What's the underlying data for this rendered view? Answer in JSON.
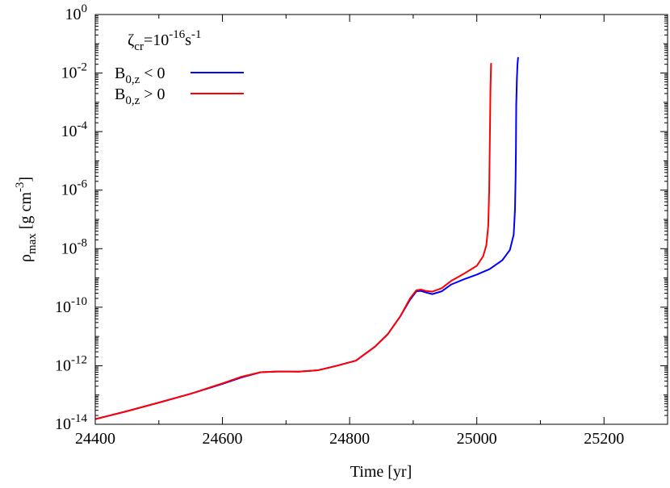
{
  "chart_data": {
    "type": "line",
    "xlabel": "Time [yr]",
    "ylabel": {
      "base": "ρ",
      "sub": "max",
      "unit": " [g cm",
      "exp": "-3",
      "close": "]"
    },
    "xlim": [
      24400,
      25300
    ],
    "ylim_log10": [
      -14,
      0
    ],
    "y_scale": "log",
    "x_ticks": [
      24400,
      24600,
      24800,
      25000,
      25200
    ],
    "y_ticks": [
      {
        "base": "10",
        "exp": "-14",
        "log": -14
      },
      {
        "base": "10",
        "exp": "-12",
        "log": -12
      },
      {
        "base": "10",
        "exp": "-10",
        "log": -10
      },
      {
        "base": "10",
        "exp": "-8",
        "log": -8
      },
      {
        "base": "10",
        "exp": "-6",
        "log": -6
      },
      {
        "base": "10",
        "exp": "-4",
        "log": -4
      },
      {
        "base": "10",
        "exp": "-2",
        "log": -2
      },
      {
        "base": "10",
        "exp": "0",
        "log": 0
      }
    ],
    "grid": false,
    "legend_position": "top-left",
    "annotation": {
      "symbol": "ζ",
      "sub": "cr",
      "eq": "=10",
      "exp": "-16",
      "unit": "s",
      "unit_exp": "-1"
    },
    "series": [
      {
        "name": {
          "base": "B",
          "sub": "0,z",
          "rest": " < 0"
        },
        "color": "#0000ff",
        "x": [
          24400,
          24450,
          24500,
          24550,
          24600,
          24630,
          24660,
          24690,
          24720,
          24750,
          24780,
          24810,
          24840,
          24860,
          24880,
          24895,
          24905,
          24912,
          24920,
          24930,
          24945,
          24960,
          24980,
          25000,
          25020,
          25040,
          25052,
          25058,
          25060,
          25061,
          25061.5,
          25062,
          25063,
          25064,
          25065
        ],
        "y": [
          1.5e-14,
          2.8e-14,
          5.5e-14,
          1.1e-13,
          2.4e-13,
          4e-13,
          6e-13,
          6.4e-13,
          6.3e-13,
          7e-13,
          1e-12,
          1.5e-12,
          4.5e-12,
          1.2e-11,
          5e-11,
          1.8e-10,
          3.5e-10,
          3.6e-10,
          3.2e-10,
          2.8e-10,
          3.5e-10,
          6e-10,
          9e-10,
          1.3e-09,
          2e-09,
          4e-09,
          9e-09,
          3e-08,
          2e-07,
          2.5e-06,
          2e-05,
          0.00075,
          0.006,
          0.02,
          0.035
        ]
      },
      {
        "name": {
          "base": "B",
          "sub": "0,z",
          "rest": " > 0"
        },
        "color": "#ff0000",
        "x": [
          24400,
          24450,
          24500,
          24550,
          24600,
          24630,
          24660,
          24690,
          24720,
          24750,
          24780,
          24810,
          24840,
          24860,
          24880,
          24895,
          24905,
          24912,
          24920,
          24930,
          24945,
          24960,
          24980,
          25000,
          25010,
          25015,
          25018,
          25019.5,
          25020.5,
          25021.5,
          25022.5
        ],
        "y": [
          1.5e-14,
          2.8e-14,
          5.5e-14,
          1.1e-13,
          2.5e-13,
          4.2e-13,
          6e-13,
          6.4e-13,
          6.3e-13,
          7e-13,
          1e-12,
          1.5e-12,
          4.5e-12,
          1.2e-11,
          5e-11,
          2e-10,
          3.8e-10,
          4e-10,
          3.6e-10,
          3.4e-10,
          4.5e-10,
          8e-10,
          1.4e-09,
          2.6e-09,
          5.5e-09,
          1.3e-08,
          6e-08,
          1e-06,
          5e-05,
          0.003,
          0.022
        ]
      }
    ]
  }
}
